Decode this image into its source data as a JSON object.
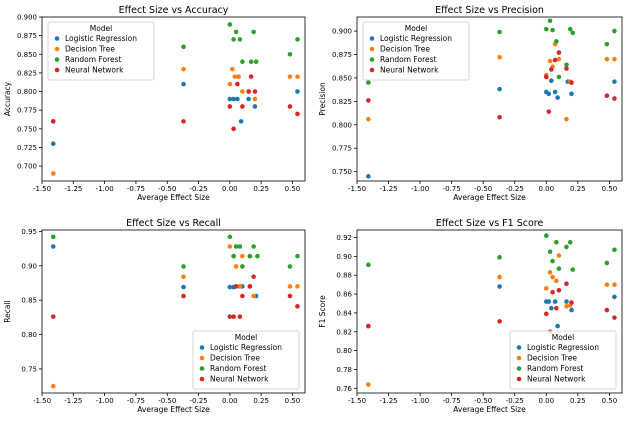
{
  "colors": {
    "Logistic Regression": "#1f77b4",
    "Decision Tree": "#ff7f0e",
    "Random Forest": "#2ca02c",
    "Neural Network": "#d62728"
  },
  "chart_data": [
    {
      "type": "scatter",
      "title": "Effect Size vs Accuracy",
      "xlabel": "Average Effect Size",
      "ylabel": "Accuracy",
      "xlim": [
        -1.5,
        0.6
      ],
      "ylim": [
        0.68,
        0.9
      ],
      "xticks": [
        -1.5,
        -1.25,
        -1.0,
        -0.75,
        -0.5,
        -0.25,
        0.0,
        0.25,
        0.5
      ],
      "xtick_labels": [
        "-1.50",
        "-1.25",
        "-1.00",
        "-0.75",
        "-0.50",
        "-0.25",
        "0.00",
        "0.25",
        "0.50"
      ],
      "yticks": [
        0.7,
        0.725,
        0.75,
        0.775,
        0.8,
        0.825,
        0.85,
        0.875,
        0.9
      ],
      "ytick_labels": [
        "0.700",
        "0.725",
        "0.750",
        "0.775",
        "0.800",
        "0.825",
        "0.850",
        "0.875",
        "0.900"
      ],
      "legend_title": "Model",
      "legend_loc": "upper-left",
      "series": [
        {
          "name": "Logistic Regression",
          "points": [
            [
              -1.41,
              0.73
            ],
            [
              -0.37,
              0.81
            ],
            [
              0.0,
              0.79
            ],
            [
              0.03,
              0.79
            ],
            [
              0.06,
              0.79
            ],
            [
              0.09,
              0.76
            ],
            [
              0.15,
              0.79
            ],
            [
              0.2,
              0.78
            ],
            [
              0.54,
              0.8
            ]
          ]
        },
        {
          "name": "Decision Tree",
          "points": [
            [
              -1.41,
              0.69
            ],
            [
              -0.37,
              0.83
            ],
            [
              0.0,
              0.81
            ],
            [
              0.02,
              0.83
            ],
            [
              0.04,
              0.82
            ],
            [
              0.07,
              0.82
            ],
            [
              0.1,
              0.8
            ],
            [
              0.15,
              0.8
            ],
            [
              0.2,
              0.79
            ],
            [
              0.48,
              0.82
            ],
            [
              0.54,
              0.82
            ]
          ]
        },
        {
          "name": "Random Forest",
          "points": [
            [
              -1.41,
              0.76
            ],
            [
              -0.37,
              0.86
            ],
            [
              0.0,
              0.89
            ],
            [
              0.03,
              0.87
            ],
            [
              0.05,
              0.88
            ],
            [
              0.08,
              0.87
            ],
            [
              0.1,
              0.84
            ],
            [
              0.17,
              0.84
            ],
            [
              0.19,
              0.88
            ],
            [
              0.21,
              0.84
            ],
            [
              0.48,
              0.85
            ],
            [
              0.54,
              0.87
            ]
          ]
        },
        {
          "name": "Neural Network",
          "points": [
            [
              -1.41,
              0.76
            ],
            [
              -0.37,
              0.76
            ],
            [
              0.0,
              0.78
            ],
            [
              0.03,
              0.75
            ],
            [
              0.06,
              0.81
            ],
            [
              0.1,
              0.78
            ],
            [
              0.15,
              0.8
            ],
            [
              0.17,
              0.82
            ],
            [
              0.2,
              0.8
            ],
            [
              0.48,
              0.78
            ],
            [
              0.54,
              0.77
            ]
          ]
        }
      ]
    },
    {
      "type": "scatter",
      "title": "Effect Size vs Precision",
      "xlabel": "Average Effect Size",
      "ylabel": "Precision",
      "xlim": [
        -1.5,
        0.6
      ],
      "ylim": [
        0.74,
        0.915
      ],
      "xticks": [
        -1.5,
        -1.25,
        -1.0,
        -0.75,
        -0.5,
        -0.25,
        0.0,
        0.25,
        0.5
      ],
      "xtick_labels": [
        "-1.50",
        "-1.25",
        "-1.00",
        "-0.75",
        "-0.50",
        "-0.25",
        "0.00",
        "0.25",
        "0.50"
      ],
      "yticks": [
        0.75,
        0.775,
        0.8,
        0.825,
        0.85,
        0.875,
        0.9
      ],
      "ytick_labels": [
        "0.750",
        "0.775",
        "0.800",
        "0.825",
        "0.850",
        "0.875",
        "0.900"
      ],
      "legend_title": "Model",
      "legend_loc": "upper-left",
      "series": [
        {
          "name": "Logistic Regression",
          "points": [
            [
              -1.41,
              0.745
            ],
            [
              -0.37,
              0.838
            ],
            [
              0.0,
              0.835
            ],
            [
              0.02,
              0.833
            ],
            [
              0.04,
              0.847
            ],
            [
              0.07,
              0.835
            ],
            [
              0.09,
              0.829
            ],
            [
              0.17,
              0.846
            ],
            [
              0.2,
              0.833
            ],
            [
              0.54,
              0.846
            ]
          ]
        },
        {
          "name": "Decision Tree",
          "points": [
            [
              -1.41,
              0.806
            ],
            [
              -0.37,
              0.872
            ],
            [
              0.0,
              0.853
            ],
            [
              0.03,
              0.868
            ],
            [
              0.05,
              0.862
            ],
            [
              0.07,
              0.886
            ],
            [
              0.1,
              0.87
            ],
            [
              0.16,
              0.806
            ],
            [
              0.19,
              0.846
            ],
            [
              0.48,
              0.87
            ],
            [
              0.54,
              0.87
            ]
          ]
        },
        {
          "name": "Random Forest",
          "points": [
            [
              -1.41,
              0.845
            ],
            [
              -0.37,
              0.899
            ],
            [
              0.0,
              0.902
            ],
            [
              0.03,
              0.911
            ],
            [
              0.05,
              0.901
            ],
            [
              0.08,
              0.889
            ],
            [
              0.1,
              0.851
            ],
            [
              0.16,
              0.864
            ],
            [
              0.19,
              0.902
            ],
            [
              0.21,
              0.898
            ],
            [
              0.48,
              0.886
            ],
            [
              0.54,
              0.9
            ]
          ]
        },
        {
          "name": "Neural Network",
          "points": [
            [
              -1.41,
              0.826
            ],
            [
              -0.37,
              0.808
            ],
            [
              0.0,
              0.851
            ],
            [
              0.02,
              0.814
            ],
            [
              0.04,
              0.859
            ],
            [
              0.07,
              0.869
            ],
            [
              0.1,
              0.877
            ],
            [
              0.16,
              0.86
            ],
            [
              0.2,
              0.845
            ],
            [
              0.48,
              0.831
            ],
            [
              0.54,
              0.828
            ]
          ]
        }
      ]
    },
    {
      "type": "scatter",
      "title": "Effect Size vs Recall",
      "xlabel": "Average Effect Size",
      "ylabel": "Recall",
      "xlim": [
        -1.5,
        0.6
      ],
      "ylim": [
        0.715,
        0.952
      ],
      "xticks": [
        -1.5,
        -1.25,
        -1.0,
        -0.75,
        -0.5,
        -0.25,
        0.0,
        0.25,
        0.5
      ],
      "xtick_labels": [
        "-1.50",
        "-1.25",
        "-1.00",
        "-0.75",
        "-0.50",
        "-0.25",
        "0.00",
        "0.25",
        "0.50"
      ],
      "yticks": [
        0.75,
        0.8,
        0.85,
        0.9,
        0.95
      ],
      "ytick_labels": [
        "0.75",
        "0.80",
        "0.85",
        "0.90",
        "0.95"
      ],
      "legend_title": "Model",
      "legend_loc": "lower-right",
      "series": [
        {
          "name": "Logistic Regression",
          "points": [
            [
              -1.41,
              0.928
            ],
            [
              -0.37,
              0.869
            ],
            [
              0.0,
              0.869
            ],
            [
              0.03,
              0.869
            ],
            [
              0.05,
              0.87
            ],
            [
              0.08,
              0.87
            ],
            [
              0.1,
              0.87
            ],
            [
              0.16,
              0.87
            ],
            [
              0.21,
              0.856
            ]
          ]
        },
        {
          "name": "Decision Tree",
          "points": [
            [
              -1.41,
              0.725
            ],
            [
              -0.37,
              0.884
            ],
            [
              0.0,
              0.928
            ],
            [
              0.03,
              0.914
            ],
            [
              0.05,
              0.899
            ],
            [
              0.08,
              0.87
            ],
            [
              0.1,
              0.914
            ],
            [
              0.16,
              0.914
            ],
            [
              0.19,
              0.856
            ],
            [
              0.48,
              0.87
            ],
            [
              0.54,
              0.87
            ]
          ]
        },
        {
          "name": "Random Forest",
          "points": [
            [
              -1.41,
              0.942
            ],
            [
              -0.37,
              0.899
            ],
            [
              0.0,
              0.942
            ],
            [
              0.03,
              0.914
            ],
            [
              0.05,
              0.928
            ],
            [
              0.08,
              0.928
            ],
            [
              0.1,
              0.899
            ],
            [
              0.16,
              0.914
            ],
            [
              0.19,
              0.928
            ],
            [
              0.22,
              0.914
            ],
            [
              0.48,
              0.899
            ],
            [
              0.54,
              0.914
            ]
          ]
        },
        {
          "name": "Neural Network",
          "points": [
            [
              -1.41,
              0.826
            ],
            [
              -0.37,
              0.856
            ],
            [
              0.0,
              0.826
            ],
            [
              0.03,
              0.826
            ],
            [
              0.05,
              0.87
            ],
            [
              0.08,
              0.826
            ],
            [
              0.1,
              0.856
            ],
            [
              0.16,
              0.87
            ],
            [
              0.19,
              0.884
            ],
            [
              0.48,
              0.856
            ],
            [
              0.54,
              0.841
            ]
          ]
        }
      ]
    },
    {
      "type": "scatter",
      "title": "Effect Size vs F1 Score",
      "xlabel": "Average Effect Size",
      "ylabel": "F1 Score",
      "xlim": [
        -1.5,
        0.6
      ],
      "ylim": [
        0.755,
        0.928
      ],
      "xticks": [
        -1.5,
        -1.25,
        -1.0,
        -0.75,
        -0.5,
        -0.25,
        0.0,
        0.25,
        0.5
      ],
      "xtick_labels": [
        "-1.50",
        "-1.25",
        "-1.00",
        "-0.75",
        "-0.50",
        "-0.25",
        "0.00",
        "0.25",
        "0.50"
      ],
      "yticks": [
        0.76,
        0.78,
        0.8,
        0.82,
        0.84,
        0.86,
        0.88,
        0.9,
        0.92
      ],
      "ytick_labels": [
        "0.76",
        "0.78",
        "0.80",
        "0.82",
        "0.84",
        "0.86",
        "0.88",
        "0.90",
        "0.92"
      ],
      "legend_title": "Model",
      "legend_loc": "lower-right",
      "series": [
        {
          "name": "Logistic Regression",
          "points": [
            [
              -1.41,
              0.826
            ],
            [
              -0.37,
              0.868
            ],
            [
              0.0,
              0.852
            ],
            [
              0.02,
              0.852
            ],
            [
              0.04,
              0.845
            ],
            [
              0.07,
              0.852
            ],
            [
              0.09,
              0.826
            ],
            [
              0.16,
              0.852
            ],
            [
              0.2,
              0.843
            ],
            [
              0.54,
              0.857
            ]
          ]
        },
        {
          "name": "Decision Tree",
          "points": [
            [
              -1.41,
              0.764
            ],
            [
              -0.37,
              0.878
            ],
            [
              0.0,
              0.866
            ],
            [
              0.03,
              0.883
            ],
            [
              0.05,
              0.878
            ],
            [
              0.08,
              0.874
            ],
            [
              0.1,
              0.901
            ],
            [
              0.16,
              0.847
            ],
            [
              0.19,
              0.848
            ],
            [
              0.48,
              0.87
            ],
            [
              0.54,
              0.87
            ]
          ]
        },
        {
          "name": "Random Forest",
          "points": [
            [
              -1.41,
              0.891
            ],
            [
              -0.37,
              0.899
            ],
            [
              0.0,
              0.922
            ],
            [
              0.03,
              0.905
            ],
            [
              0.05,
              0.895
            ],
            [
              0.08,
              0.915
            ],
            [
              0.1,
              0.887
            ],
            [
              0.16,
              0.91
            ],
            [
              0.19,
              0.915
            ],
            [
              0.21,
              0.886
            ],
            [
              0.48,
              0.893
            ],
            [
              0.54,
              0.907
            ]
          ]
        },
        {
          "name": "Neural Network",
          "points": [
            [
              -1.41,
              0.826
            ],
            [
              -0.37,
              0.831
            ],
            [
              0.0,
              0.839
            ],
            [
              0.03,
              0.82
            ],
            [
              0.05,
              0.862
            ],
            [
              0.08,
              0.845
            ],
            [
              0.1,
              0.864
            ],
            [
              0.16,
              0.871
            ],
            [
              0.2,
              0.851
            ],
            [
              0.48,
              0.843
            ],
            [
              0.54,
              0.835
            ]
          ]
        }
      ]
    }
  ]
}
